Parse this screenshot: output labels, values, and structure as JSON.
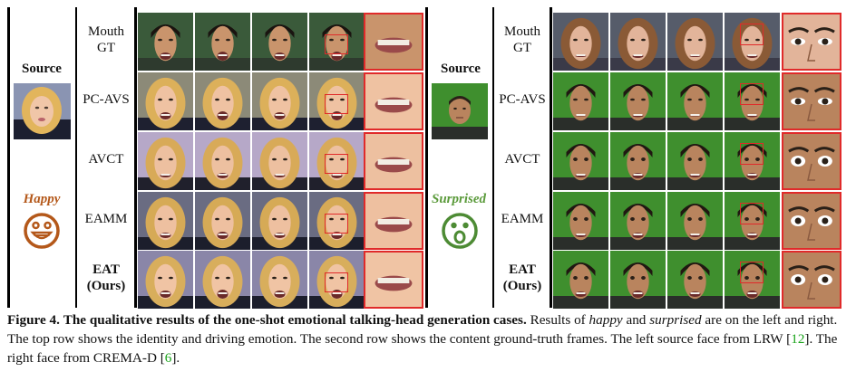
{
  "left_panel": {
    "source_label": "Source",
    "emotion_label": "Happy",
    "emotion_color": "#b4581a",
    "emotion_icon": "happy-face-icon",
    "rows": [
      {
        "label_line1": "Mouth",
        "label_line2": "GT",
        "bold": false
      },
      {
        "label_line1": "PC-AVS",
        "label_line2": "",
        "bold": false
      },
      {
        "label_line1": "AVCT",
        "label_line2": "",
        "bold": false
      },
      {
        "label_line1": "EAMM",
        "label_line2": "",
        "bold": false
      },
      {
        "label_line1": "EAT",
        "label_line2": "(Ours)",
        "bold": true
      }
    ]
  },
  "right_panel": {
    "source_label": "Source",
    "emotion_label": "Surprised",
    "emotion_color": "#5a9a3a",
    "emotion_icon": "surprised-face-icon",
    "rows": [
      {
        "label_line1": "Mouth",
        "label_line2": "GT",
        "bold": false
      },
      {
        "label_line1": "PC-AVS",
        "label_line2": "",
        "bold": false
      },
      {
        "label_line1": "AVCT",
        "label_line2": "",
        "bold": false
      },
      {
        "label_line1": "EAMM",
        "label_line2": "",
        "bold": false
      },
      {
        "label_line1": "EAT",
        "label_line2": "(Ours)",
        "bold": true
      }
    ]
  },
  "caption": {
    "figure_label": "Figure 4.",
    "title": "The qualitative results of the one-shot emotional talking-head generation cases.",
    "text_1": "Results of",
    "happy": "happy",
    "and": "and",
    "surprised": "surprised",
    "text_2": "are on the left and right. The top row shows the identity and driving emotion. The second row shows the content ground-truth frames. The left source face from LRW [",
    "ref_lrw": "12",
    "text_3": "]. The right face from CREMA-D  [",
    "ref_crema": "6",
    "text_4": "]."
  }
}
